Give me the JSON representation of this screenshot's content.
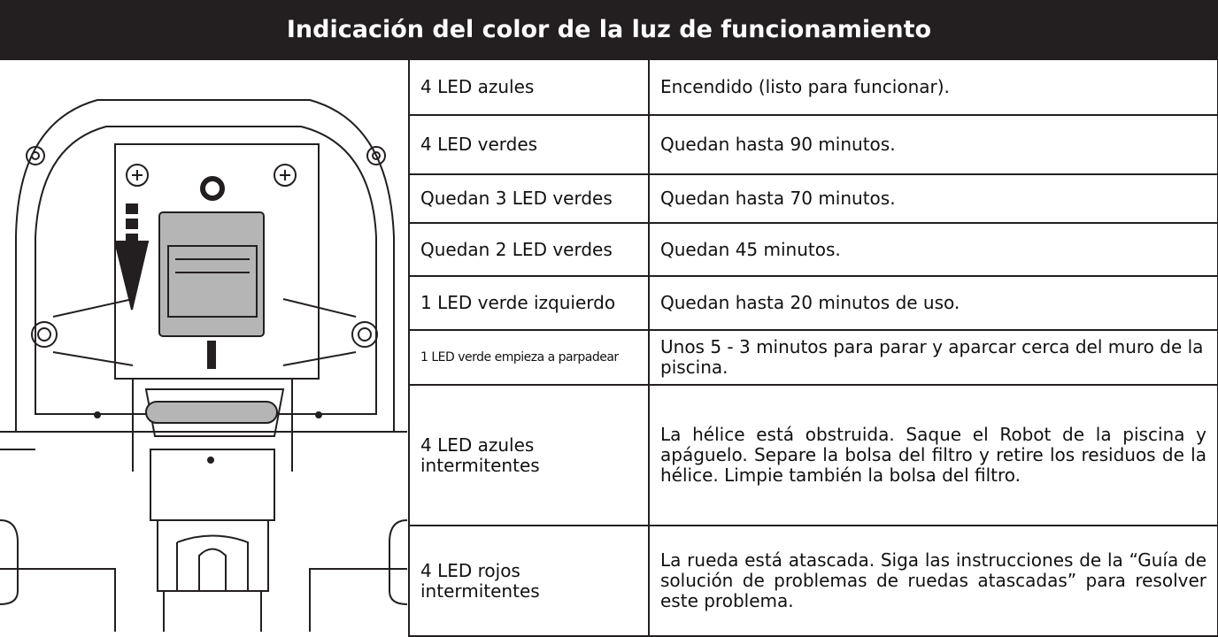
{
  "header": {
    "title": "Indicación del color de la luz de funcionamiento"
  },
  "table": {
    "rows": [
      [
        "4 LED azules",
        "Encendido (listo para funcionar)."
      ],
      [
        "4 LED verdes",
        "Quedan hasta 90 minutos."
      ],
      [
        "Quedan 3 LED verdes",
        "Quedan hasta 70 minutos."
      ],
      [
        "Quedan 2 LED verdes",
        "Quedan 45 minutos."
      ],
      [
        "1 LED verde izquierdo",
        "Quedan hasta 20 minutos de uso."
      ],
      [
        "1 LED verde empieza a parpadear",
        "Unos 5 - 3 minutos para parar y aparcar cerca del muro de la piscina."
      ],
      [
        "4 LED azules intermitentes",
        "La hélice está obstruida. Saque el Robot de la piscina y apáguelo. Separe la bolsa del filtro y retire los residuos de la hélice. Limpie también la bolsa del filtro."
      ],
      [
        "4 LED rojos intermitentes",
        "La rueda está atascada. Siga las instrucciones de la “Guía de solución de problemas de ruedas atascadas” para resolver este problema."
      ]
    ]
  }
}
